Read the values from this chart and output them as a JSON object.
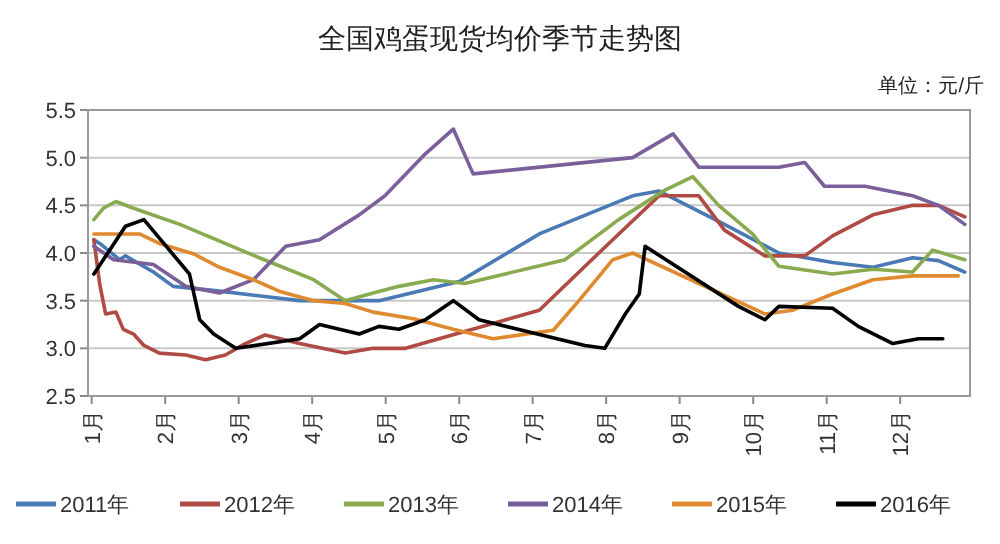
{
  "chart_data": {
    "type": "line",
    "title": "全国鸡蛋现货均价季节走势图",
    "annotations": [
      "单位：元/斤"
    ],
    "xlim": [
      0.95,
      12.95
    ],
    "xticks": [
      {
        "value": 1,
        "label": "1月"
      },
      {
        "value": 2,
        "label": "2月"
      },
      {
        "value": 3,
        "label": "3月"
      },
      {
        "value": 4,
        "label": "4月"
      },
      {
        "value": 5,
        "label": "5月"
      },
      {
        "value": 6,
        "label": "6月"
      },
      {
        "value": 7,
        "label": "7月"
      },
      {
        "value": 8,
        "label": "8月"
      },
      {
        "value": 9,
        "label": "9月"
      },
      {
        "value": 10,
        "label": "10月"
      },
      {
        "value": 11,
        "label": "11月"
      },
      {
        "value": 12,
        "label": "12月"
      }
    ],
    "ylim": [
      2.5,
      5.5
    ],
    "yticks": [
      {
        "value": 2.5,
        "label": "2.5"
      },
      {
        "value": 3,
        "label": "3.0"
      },
      {
        "value": 3.5,
        "label": "3.5"
      },
      {
        "value": 4,
        "label": "4.0"
      },
      {
        "value": 4.5,
        "label": "4.5"
      },
      {
        "value": 5,
        "label": "5.0"
      },
      {
        "value": 5.5,
        "label": "5.5"
      }
    ],
    "grid": "y",
    "legend": "bottom",
    "marker": "none",
    "line_style": "solid",
    "series": [
      {
        "name": "2011年",
        "color": "#4a7ab5",
        "x": [
          1.03,
          1.11,
          1.38,
          1.46,
          1.84,
          2.11,
          2.74,
          3.83,
          4.91,
          6.0,
          7.09,
          8.36,
          8.72,
          9.61,
          10.35,
          11.08,
          11.63,
          12.17,
          12.52,
          12.88
        ],
        "values": [
          4.14,
          4.1,
          3.93,
          3.97,
          3.8,
          3.65,
          3.6,
          3.5,
          3.5,
          3.7,
          4.2,
          4.6,
          4.65,
          4.3,
          4.0,
          3.9,
          3.85,
          3.95,
          3.92,
          3.8
        ]
      },
      {
        "name": "2012年",
        "color": "#b04a45",
        "x": [
          1.03,
          1.11,
          1.19,
          1.33,
          1.43,
          1.57,
          1.71,
          1.92,
          2.28,
          2.55,
          2.82,
          3.09,
          3.36,
          3.83,
          4.45,
          4.83,
          5.27,
          7.09,
          7.9,
          8.72,
          9.26,
          9.61,
          10.16,
          10.7,
          11.08,
          11.63,
          12.17,
          12.52,
          12.88
        ],
        "values": [
          4.14,
          3.67,
          3.36,
          3.38,
          3.2,
          3.15,
          3.03,
          2.95,
          2.93,
          2.88,
          2.93,
          3.05,
          3.14,
          3.05,
          2.95,
          3.0,
          3.0,
          3.4,
          4.0,
          4.6,
          4.6,
          4.24,
          3.97,
          3.97,
          4.18,
          4.4,
          4.5,
          4.5,
          4.38
        ]
      },
      {
        "name": "2013年",
        "color": "#8aaa50",
        "x": [
          1.03,
          1.16,
          1.33,
          1.57,
          2.2,
          3.28,
          4.02,
          4.45,
          4.83,
          5.18,
          5.65,
          6.08,
          7.44,
          8.17,
          8.8,
          9.18,
          9.53,
          9.99,
          10.35,
          11.08,
          11.63,
          12.17,
          12.44,
          12.88
        ],
        "values": [
          4.35,
          4.47,
          4.54,
          4.47,
          4.3,
          3.95,
          3.72,
          3.5,
          3.58,
          3.65,
          3.72,
          3.68,
          3.93,
          4.35,
          4.66,
          4.8,
          4.5,
          4.2,
          3.86,
          3.78,
          3.83,
          3.8,
          4.03,
          3.93
        ]
      },
      {
        "name": "2014年",
        "color": "#7a5f9a",
        "x": [
          1.03,
          1.3,
          1.84,
          2.28,
          2.74,
          3.2,
          3.64,
          4.1,
          4.64,
          4.99,
          5.54,
          5.92,
          6.19,
          8.36,
          8.91,
          9.26,
          10.35,
          10.7,
          10.97,
          11.52,
          12.17,
          12.52,
          12.88
        ],
        "values": [
          4.07,
          3.93,
          3.88,
          3.65,
          3.58,
          3.72,
          4.07,
          4.14,
          4.4,
          4.6,
          5.04,
          5.3,
          4.83,
          5.0,
          5.25,
          4.9,
          4.9,
          4.95,
          4.7,
          4.7,
          4.6,
          4.5,
          4.3
        ]
      },
      {
        "name": "2015年",
        "color": "#e08a30",
        "x": [
          1.03,
          1.65,
          1.92,
          2.39,
          2.74,
          3.2,
          3.55,
          4.02,
          4.45,
          4.83,
          5.38,
          5.92,
          6.46,
          7.28,
          7.63,
          8.09,
          8.36,
          10.16,
          10.54,
          11.08,
          11.63,
          12.17,
          12.79
        ],
        "values": [
          4.2,
          4.2,
          4.1,
          3.99,
          3.85,
          3.72,
          3.6,
          3.5,
          3.47,
          3.38,
          3.31,
          3.2,
          3.1,
          3.19,
          3.5,
          3.93,
          4.0,
          3.36,
          3.4,
          3.57,
          3.72,
          3.76,
          3.76
        ]
      },
      {
        "name": "2016年",
        "color": "#000000",
        "x": [
          1.03,
          1.46,
          1.71,
          2.33,
          2.47,
          2.66,
          2.96,
          3.83,
          4.1,
          4.64,
          4.91,
          5.18,
          5.54,
          5.92,
          6.27,
          7.71,
          7.98,
          8.26,
          8.45,
          8.53,
          9.8,
          10.16,
          10.35,
          11.08,
          11.43,
          11.9,
          12.25,
          12.58
        ],
        "values": [
          3.78,
          4.28,
          4.35,
          3.78,
          3.3,
          3.15,
          3.0,
          3.1,
          3.25,
          3.15,
          3.23,
          3.2,
          3.3,
          3.5,
          3.3,
          3.03,
          3.0,
          3.36,
          3.57,
          4.07,
          3.44,
          3.3,
          3.44,
          3.42,
          3.23,
          3.05,
          3.1,
          3.1
        ]
      }
    ]
  }
}
